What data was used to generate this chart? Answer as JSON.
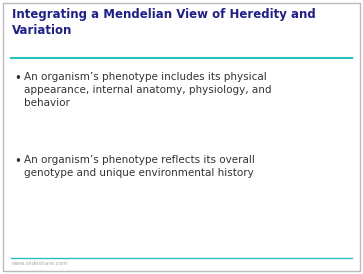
{
  "title": "Integrating a Mendelian View of Heredity and\nVariation",
  "title_color": "#1F1F8F",
  "title_fontsize": 8.5,
  "bullet_color": "#333333",
  "bullet_fontsize": 7.5,
  "bullets": [
    "An organism’s phenotype includes its physical\nappearance, internal anatomy, physiology, and\nbehavior",
    "An organism’s phenotype reflects its overall\ngenotype and unique environmental history"
  ],
  "background_color": "#FFFFFF",
  "border_color": "#BBBBBB",
  "line_color_top": "#2ABFBF",
  "line_color_bottom": "#2ABFBF",
  "watermark": "www.slideshare.com",
  "watermark_color": "#AAAAAA",
  "watermark_fontsize": 4.0
}
